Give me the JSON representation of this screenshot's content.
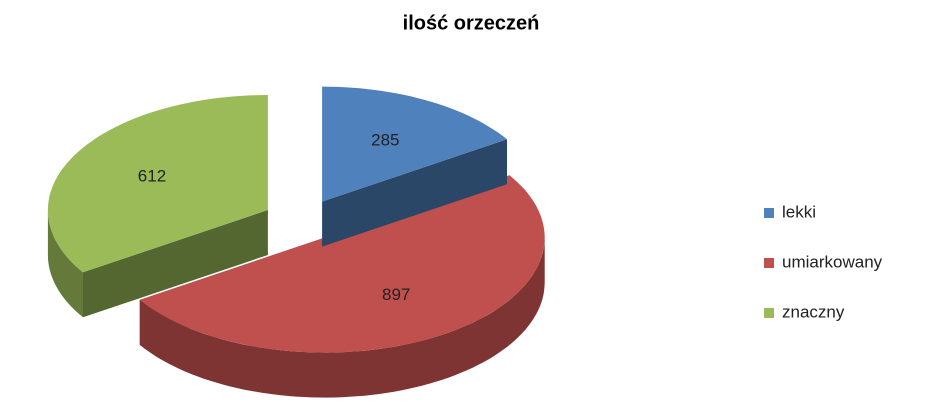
{
  "chart_data": {
    "type": "pie3d",
    "title": "ilość orzeczeń",
    "categories": [
      "lekki",
      "umiarkowany",
      "znaczny"
    ],
    "values": [
      285,
      897,
      612
    ],
    "colors": [
      "#4f81bd",
      "#c0504d",
      "#9bbb59"
    ],
    "legend": "right"
  }
}
